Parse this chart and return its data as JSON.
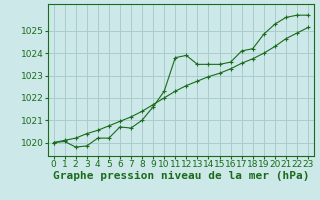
{
  "background_color": "#cce8e8",
  "grid_color": "#aacccc",
  "line_color": "#1a6b1a",
  "marker_color": "#1a6b1a",
  "xlabel": "Graphe pression niveau de la mer (hPa)",
  "ylim": [
    1019.4,
    1026.2
  ],
  "xlim": [
    -0.5,
    23.5
  ],
  "yticks": [
    1020,
    1021,
    1022,
    1023,
    1024,
    1025
  ],
  "xticks": [
    0,
    1,
    2,
    3,
    4,
    5,
    6,
    7,
    8,
    9,
    10,
    11,
    12,
    13,
    14,
    15,
    16,
    17,
    18,
    19,
    20,
    21,
    22,
    23
  ],
  "series1_x": [
    0,
    1,
    2,
    3,
    4,
    5,
    6,
    7,
    8,
    9,
    10,
    11,
    12,
    13,
    14,
    15,
    16,
    17,
    18,
    19,
    20,
    21,
    22,
    23
  ],
  "series1_y": [
    1020.0,
    1020.05,
    1019.8,
    1019.85,
    1020.2,
    1020.2,
    1020.7,
    1020.65,
    1021.0,
    1021.6,
    1022.3,
    1023.8,
    1023.9,
    1023.5,
    1023.5,
    1023.5,
    1023.6,
    1024.1,
    1024.2,
    1024.85,
    1025.3,
    1025.6,
    1025.7,
    1025.7
  ],
  "series2_x": [
    0,
    1,
    2,
    3,
    4,
    5,
    6,
    7,
    8,
    9,
    10,
    11,
    12,
    13,
    14,
    15,
    16,
    17,
    18,
    19,
    20,
    21,
    22,
    23
  ],
  "series2_y": [
    1020.0,
    1020.1,
    1020.2,
    1020.4,
    1020.55,
    1020.75,
    1020.95,
    1021.15,
    1021.4,
    1021.7,
    1022.0,
    1022.3,
    1022.55,
    1022.75,
    1022.95,
    1023.1,
    1023.3,
    1023.55,
    1023.75,
    1024.0,
    1024.3,
    1024.65,
    1024.9,
    1025.15
  ],
  "title_fontsize": 8,
  "tick_fontsize": 6.5
}
